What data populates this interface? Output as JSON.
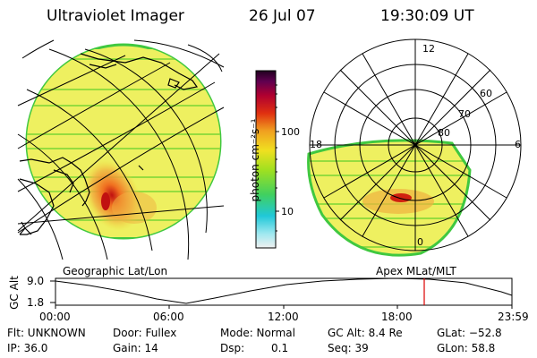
{
  "header": {
    "instrument": "Ultraviolet Imager",
    "date": "26 Jul 07",
    "time": "19:30:09 UT"
  },
  "colorbar": {
    "unit_label": "photon cm⁻²s⁻¹",
    "ticks": [
      "100",
      "10"
    ]
  },
  "panels": {
    "left_label": "Geographic Lat/Lon",
    "right_label": "Apex MLat/MLT",
    "polar_mlt_labels": [
      "12",
      "18",
      "6",
      "0"
    ],
    "polar_lat_labels": [
      "60",
      "70",
      "80"
    ]
  },
  "timeline": {
    "ylabel": "GC Alt",
    "y_ticks": [
      "9.0",
      "1.8"
    ],
    "x_ticks": [
      "00:00",
      "06:00",
      "12:00",
      "18:00",
      "23:59"
    ],
    "marker_time": "19:30"
  },
  "footer": {
    "row1": {
      "flt": "Flt: UNKNOWN",
      "door": "Door: Fullex",
      "mode": "Mode: Normal",
      "gc_alt": "GC Alt: 8.4 Re",
      "glat": "GLat: −52.8"
    },
    "row2": {
      "ip": "IP: 36.0",
      "gain": "Gain: 14",
      "dsp_label": "Dsp:",
      "dsp_value": "0.1",
      "seq": "Seq: 39",
      "glon": "GLon: 58.8"
    }
  },
  "colors": {
    "frame": "#000000",
    "marker": "#dd0000",
    "image_low": "#e8ee40",
    "image_mid": "#f2b040",
    "image_edge": "#40c840"
  }
}
